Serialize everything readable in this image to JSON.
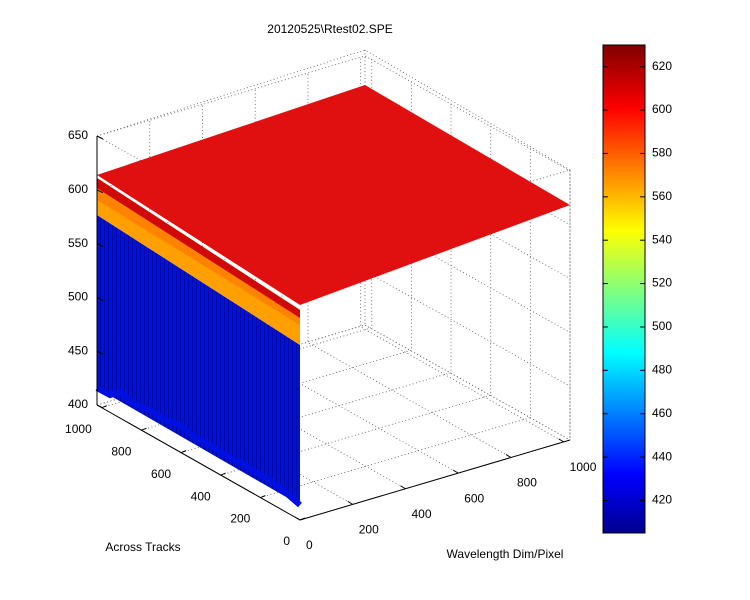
{
  "chart_data": {
    "type": "surface",
    "title": "20120525\\Rtest02.SPE",
    "xlabel": "Wavelength Dim/Pixel",
    "ylabel": "Across Tracks",
    "xlim": [
      0,
      1024
    ],
    "xticks": [
      0,
      200,
      400,
      600,
      800,
      1000
    ],
    "ylim": [
      0,
      1024
    ],
    "yticks": [
      0,
      200,
      400,
      600,
      800,
      1000
    ],
    "zlim": [
      400,
      650
    ],
    "zticks": [
      400,
      450,
      500,
      550,
      600,
      650
    ],
    "clim": [
      405,
      630
    ],
    "cticks": [
      420,
      440,
      460,
      480,
      500,
      520,
      540,
      560,
      580,
      600,
      620
    ],
    "colormap": "jet",
    "grid": true
  }
}
